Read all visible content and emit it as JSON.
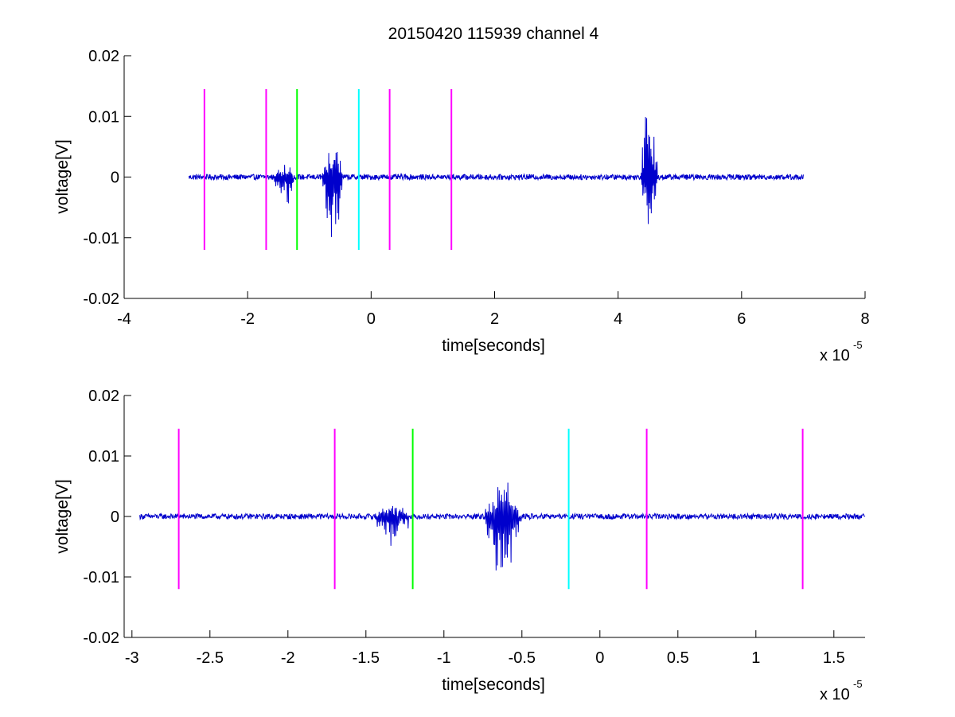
{
  "chart_data": [
    {
      "type": "line",
      "title": "20150420 115939 channel 4",
      "xlabel": "time[seconds]",
      "ylabel": "voltage[V]",
      "x_multiplier": "x 10",
      "x_exponent": "-5",
      "xlim": [
        -4,
        8
      ],
      "ylim": [
        -0.02,
        0.02
      ],
      "xticks": [
        -4,
        -2,
        0,
        2,
        4,
        6,
        8
      ],
      "xtick_labels": [
        "-4",
        "-2",
        "0",
        "2",
        "4",
        "6",
        "8"
      ],
      "yticks": [
        -0.02,
        -0.01,
        0,
        0.01,
        0.02
      ],
      "ytick_labels": [
        "-0.02",
        "-0.01",
        "0",
        "0.01",
        "0.02"
      ],
      "grid": false,
      "signal": {
        "color": "#0000cc",
        "x_range": [
          -2.95,
          7.0
        ],
        "bursts": [
          {
            "t": [
              -1.6,
              -1.2
            ],
            "peak_min": -0.005,
            "peak_max": 0.002
          },
          {
            "t": [
              -0.8,
              -0.45
            ],
            "peak_min": -0.011,
            "peak_max": 0.0058
          },
          {
            "t": [
              4.35,
              4.65
            ],
            "peak_min": -0.0098,
            "peak_max": 0.0132
          }
        ]
      },
      "markers": [
        {
          "x": -2.7,
          "color": "#ff00ff",
          "y": [
            -0.012,
            0.0145
          ]
        },
        {
          "x": -1.7,
          "color": "#ff00ff",
          "y": [
            -0.012,
            0.0145
          ]
        },
        {
          "x": -1.2,
          "color": "#00ff00",
          "y": [
            -0.012,
            0.0145
          ]
        },
        {
          "x": -0.2,
          "color": "#00ffff",
          "y": [
            -0.012,
            0.0145
          ]
        },
        {
          "x": 0.3,
          "color": "#ff00ff",
          "y": [
            -0.012,
            0.0145
          ]
        },
        {
          "x": 1.3,
          "color": "#ff00ff",
          "y": [
            -0.012,
            0.0145
          ]
        }
      ]
    },
    {
      "type": "line",
      "title": "",
      "xlabel": "time[seconds]",
      "ylabel": "voltage[V]",
      "x_multiplier": "x 10",
      "x_exponent": "-5",
      "xlim": [
        -3.05,
        1.7
      ],
      "ylim": [
        -0.02,
        0.02
      ],
      "xticks": [
        -3,
        -2.5,
        -2,
        -1.5,
        -1,
        -0.5,
        0,
        0.5,
        1,
        1.5
      ],
      "xtick_labels": [
        "-3",
        "-2.5",
        "-2",
        "-1.5",
        "-1",
        "-0.5",
        "0",
        "0.5",
        "1",
        "1.5"
      ],
      "yticks": [
        -0.02,
        -0.01,
        0,
        0.01,
        0.02
      ],
      "ytick_labels": [
        "-0.02",
        "-0.01",
        "0",
        "0.01",
        "0.02"
      ],
      "grid": false,
      "signal": {
        "color": "#0000cc",
        "x_range": [
          -2.95,
          1.7
        ],
        "bursts": [
          {
            "t": [
              -1.45,
              -1.2
            ],
            "peak_min": -0.005,
            "peak_max": 0.002
          },
          {
            "t": [
              -0.75,
              -0.5
            ],
            "peak_min": -0.011,
            "peak_max": 0.0058
          }
        ]
      },
      "markers": [
        {
          "x": -2.7,
          "color": "#ff00ff",
          "y": [
            -0.012,
            0.0145
          ]
        },
        {
          "x": -1.7,
          "color": "#ff00ff",
          "y": [
            -0.012,
            0.0145
          ]
        },
        {
          "x": -1.2,
          "color": "#00ff00",
          "y": [
            -0.012,
            0.0145
          ]
        },
        {
          "x": -0.2,
          "color": "#00ffff",
          "y": [
            -0.012,
            0.0145
          ]
        },
        {
          "x": 0.3,
          "color": "#ff00ff",
          "y": [
            -0.012,
            0.0145
          ]
        },
        {
          "x": 1.3,
          "color": "#ff00ff",
          "y": [
            -0.012,
            0.0145
          ]
        }
      ]
    }
  ]
}
